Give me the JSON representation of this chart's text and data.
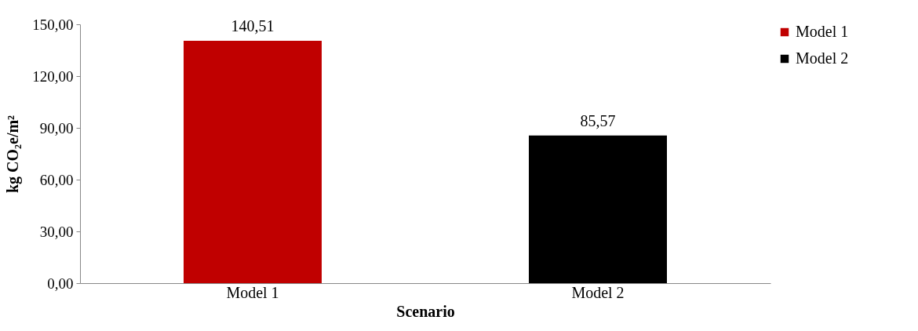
{
  "chart_data": {
    "type": "bar",
    "categories": [
      "Model 1",
      "Model 2"
    ],
    "stacked": true,
    "series": [
      {
        "name": "Model 1",
        "color": "#c00000",
        "values": [
          140.51,
          null
        ],
        "value_labels": [
          "140,51",
          null
        ]
      },
      {
        "name": "Model 2",
        "color": "#000000",
        "values": [
          null,
          85.57
        ],
        "value_labels": [
          null,
          "85,57"
        ]
      }
    ],
    "xlabel": "Scenario",
    "ylabel": "kg CO₂e/m²",
    "ylim": [
      0,
      150
    ],
    "yticks": [
      {
        "value": 0,
        "label": "0,00"
      },
      {
        "value": 30,
        "label": "30,00"
      },
      {
        "value": 60,
        "label": "60,00"
      },
      {
        "value": 90,
        "label": "90,00"
      },
      {
        "value": 120,
        "label": "120,00"
      },
      {
        "value": 150,
        "label": "150,00"
      }
    ],
    "grid": false,
    "legend": "right"
  }
}
